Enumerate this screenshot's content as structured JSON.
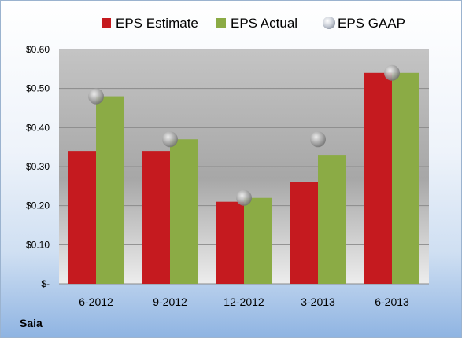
{
  "chart_data": {
    "type": "bar",
    "categories": [
      "6-2012",
      "9-2012",
      "12-2012",
      "3-2013",
      "6-2013"
    ],
    "series": [
      {
        "name": "EPS Estimate",
        "values": [
          0.34,
          0.34,
          0.21,
          0.26,
          0.54
        ],
        "color": "#c51a1f"
      },
      {
        "name": "EPS Actual",
        "values": [
          0.48,
          0.37,
          0.22,
          0.33,
          0.54
        ],
        "color": "#8bab45"
      },
      {
        "name": "EPS GAAP",
        "values": [
          0.48,
          0.37,
          0.22,
          0.37,
          0.54
        ],
        "color": "#a8a8a8",
        "marker": "circle"
      }
    ],
    "ylim": [
      0,
      0.6
    ],
    "yticks": [
      0,
      0.1,
      0.2,
      0.3,
      0.4,
      0.5,
      0.6
    ],
    "ytick_labels": [
      "$-",
      "$0.10",
      "$0.20",
      "$0.30",
      "$0.40",
      "$0.50",
      "$0.60"
    ],
    "grid": true,
    "legend": "top"
  },
  "footer": {
    "company": "Saia"
  }
}
